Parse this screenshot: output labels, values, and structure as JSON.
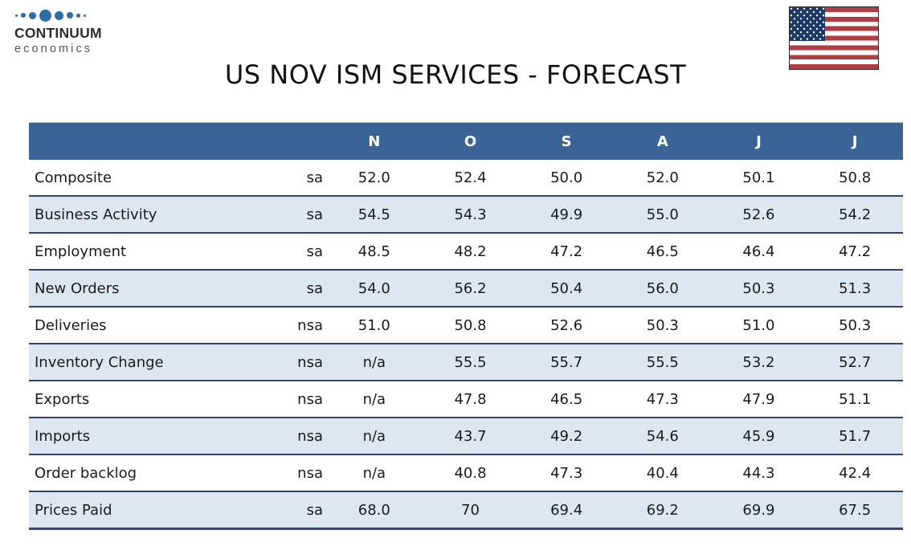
{
  "brand": {
    "name": "CONTINUUM",
    "tagline": "economics",
    "dot_color": "#2c6da6",
    "dot_sizes": [
      3,
      6,
      9,
      15,
      11,
      8,
      5,
      3
    ]
  },
  "header": {
    "title": "US NOV ISM SERVICES - FORECAST"
  },
  "flag": {
    "name": "us-flag",
    "stripe_red": "#b13c44",
    "canton_blue": "#1e3a64"
  },
  "chart_data": {
    "type": "table",
    "title": "US NOV ISM SERVICES - FORECAST",
    "column_headers": [
      "N",
      "O",
      "S",
      "A",
      "J",
      "J"
    ],
    "rows": [
      {
        "label": "Composite",
        "adj": "sa",
        "values": [
          "52.0",
          "52.4",
          "50.0",
          "52.0",
          "50.1",
          "50.8"
        ]
      },
      {
        "label": "Business Activity",
        "adj": "sa",
        "values": [
          "54.5",
          "54.3",
          "49.9",
          "55.0",
          "52.6",
          "54.2"
        ]
      },
      {
        "label": "Employment",
        "adj": "sa",
        "values": [
          "48.5",
          "48.2",
          "47.2",
          "46.5",
          "46.4",
          "47.2"
        ]
      },
      {
        "label": "New Orders",
        "adj": "sa",
        "values": [
          "54.0",
          "56.2",
          "50.4",
          "56.0",
          "50.3",
          "51.3"
        ]
      },
      {
        "label": "Deliveries",
        "adj": "nsa",
        "values": [
          "51.0",
          "50.8",
          "52.6",
          "50.3",
          "51.0",
          "50.3"
        ]
      },
      {
        "label": "Inventory Change",
        "adj": "nsa",
        "values": [
          "n/a",
          "55.5",
          "55.7",
          "55.5",
          "53.2",
          "52.7"
        ]
      },
      {
        "label": "Exports",
        "adj": "nsa",
        "values": [
          "n/a",
          "47.8",
          "46.5",
          "47.3",
          "47.9",
          "51.1"
        ]
      },
      {
        "label": "Imports",
        "adj": "nsa",
        "values": [
          "n/a",
          "43.7",
          "49.2",
          "54.6",
          "45.9",
          "51.7"
        ]
      },
      {
        "label": "Order backlog",
        "adj": "nsa",
        "values": [
          "n/a",
          "40.8",
          "47.3",
          "40.4",
          "44.3",
          "42.4"
        ]
      },
      {
        "label": "Prices Paid",
        "adj": "sa",
        "values": [
          "68.0",
          "70",
          "69.4",
          "69.2",
          "69.9",
          "67.5"
        ]
      }
    ],
    "colors": {
      "header_bg": "#3a6496",
      "header_text": "#ffffff",
      "row_bg": "#ffffff",
      "row_alt_bg": "#dce7f2",
      "separator": "#31456b",
      "bottom_border": "#2c4a73",
      "text": "#1b1b1b"
    },
    "layout": {
      "striped": true,
      "legend": false,
      "grid": false
    }
  }
}
